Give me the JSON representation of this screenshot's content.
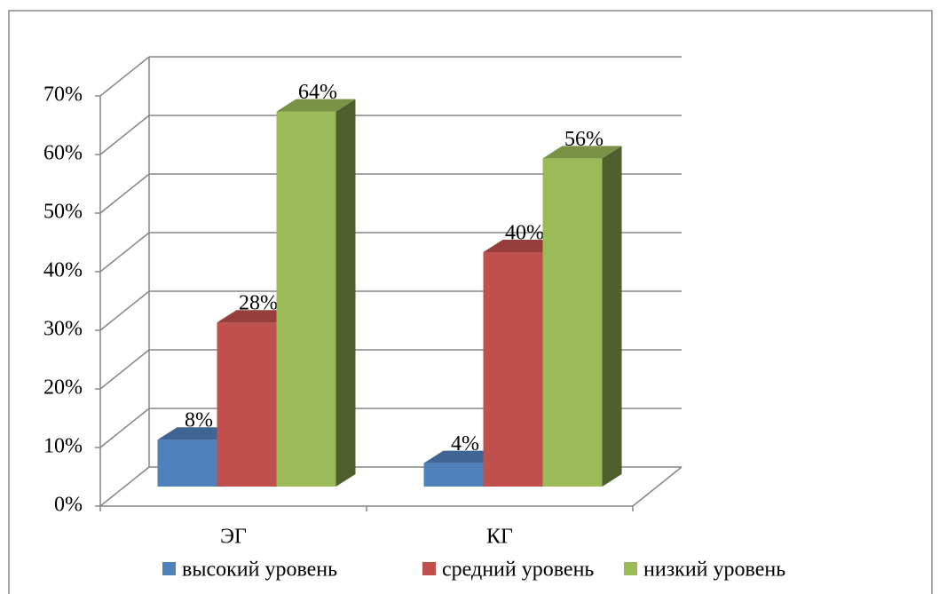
{
  "chart_data": {
    "type": "bar3d",
    "categories": [
      "ЭГ",
      "КГ"
    ],
    "series": [
      {
        "name": "высокий уровень",
        "color": "#4f81bd",
        "values": [
          8,
          4
        ],
        "value_labels": [
          "8%",
          "4%"
        ]
      },
      {
        "name": "средний уровень",
        "color": "#c0504d",
        "values": [
          28,
          40
        ],
        "value_labels": [
          "28%",
          "40%"
        ]
      },
      {
        "name": "низкий уровень",
        "color": "#9bbb59",
        "values": [
          64,
          56
        ],
        "value_labels": [
          "64%",
          "56%"
        ]
      }
    ],
    "ylim": [
      0,
      70
    ],
    "yticks": [
      {
        "value": 0,
        "label": "0%"
      },
      {
        "value": 10,
        "label": "10%"
      },
      {
        "value": 20,
        "label": "20%"
      },
      {
        "value": 30,
        "label": "30%"
      },
      {
        "value": 40,
        "label": "40%"
      },
      {
        "value": 50,
        "label": "50%"
      },
      {
        "value": 60,
        "label": "60%"
      },
      {
        "value": 70,
        "label": "70%"
      }
    ],
    "grid": true,
    "legend": "bottom"
  }
}
